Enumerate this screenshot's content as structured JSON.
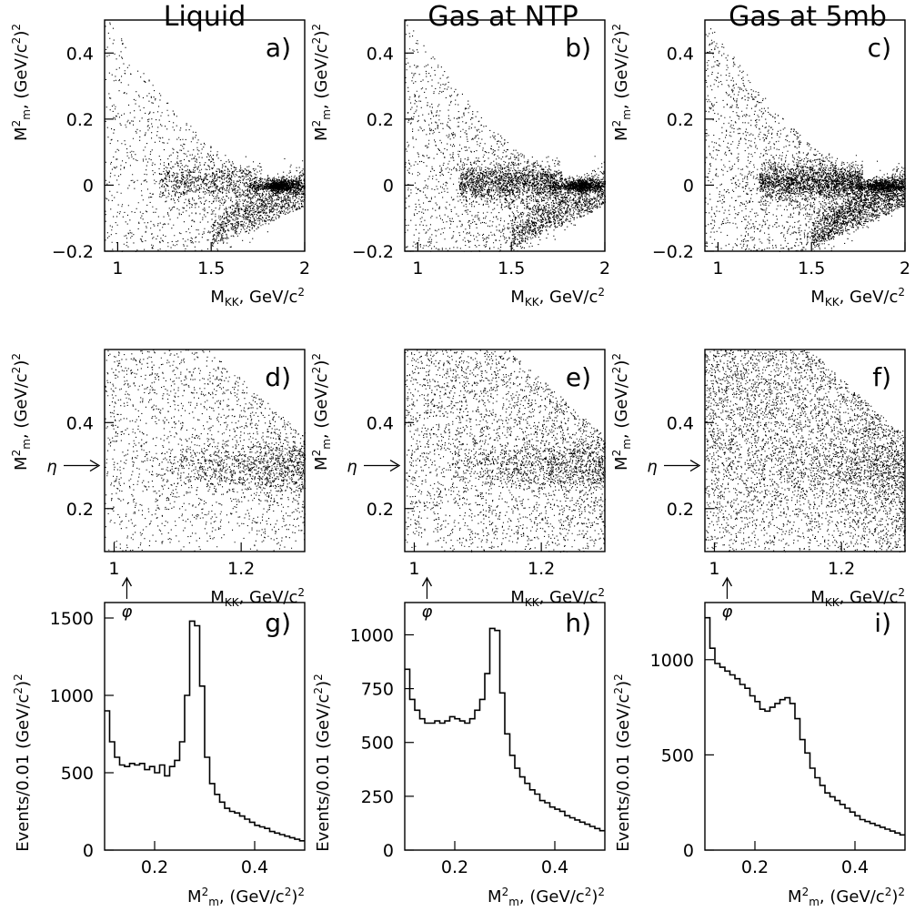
{
  "columns": [
    "Liquid",
    "Gas at NTP",
    "Gas at 5mb"
  ],
  "chart_data": [
    {
      "id": "a",
      "label": "a)",
      "type": "scatter",
      "col": 0,
      "row": 0,
      "xlabel": "M_KK, GeV/c^2",
      "ylabel": "M^2_m, (GeV/c^2)^2",
      "xlim": [
        0.93,
        2.0
      ],
      "ylim": [
        -0.2,
        0.5
      ],
      "xticks": [
        1,
        1.5,
        2
      ],
      "xtick_labels": [
        "1",
        "1.5",
        "2"
      ],
      "yticks": [
        -0.2,
        0,
        0.2,
        0.4
      ],
      "ytick_labels": [
        "-0.2",
        "0",
        "0.2",
        "0.4"
      ],
      "description_density": {
        "band_low": 0.55,
        "band_hi": 0.25,
        "phi_peak": 1.0,
        "bkg": 0.35
      }
    },
    {
      "id": "b",
      "label": "b)",
      "type": "scatter",
      "col": 1,
      "row": 0,
      "xlabel": "M_KK, GeV/c^2",
      "ylabel": "M^2_m, (GeV/c^2)^2",
      "xlim": [
        0.93,
        2.0
      ],
      "ylim": [
        -0.2,
        0.5
      ],
      "xticks": [
        1,
        1.5,
        2
      ],
      "xtick_labels": [
        "1",
        "1.5",
        "2"
      ],
      "yticks": [
        -0.2,
        0,
        0.2,
        0.4
      ],
      "ytick_labels": [
        "-0.2",
        "0",
        "0.2",
        "0.4"
      ],
      "description_density": {
        "band_low": 0.6,
        "band_hi": 0.55,
        "phi_peak": 0.8,
        "bkg": 0.45
      }
    },
    {
      "id": "c",
      "label": "c)",
      "type": "scatter",
      "col": 2,
      "row": 0,
      "xlabel": "M_KK, GeV/c^2",
      "ylabel": "M^2_m, (GeV/c^2)^2",
      "xlim": [
        0.93,
        2.0
      ],
      "ylim": [
        -0.2,
        0.5
      ],
      "xticks": [
        1,
        1.5,
        2
      ],
      "xtick_labels": [
        "1",
        "1.5",
        "2"
      ],
      "yticks": [
        -0.2,
        0,
        0.2,
        0.4
      ],
      "ytick_labels": [
        "-0.2",
        "0",
        "0.2",
        "0.4"
      ],
      "description_density": {
        "band_low": 0.9,
        "band_hi": 0.7,
        "phi_peak": 0.5,
        "bkg": 0.55
      }
    },
    {
      "id": "d",
      "label": "d)",
      "type": "scatter",
      "col": 0,
      "row": 1,
      "xlabel": "M_KK, GeV/c^2",
      "ylabel": "M^2_m, (GeV/c^2)^2",
      "xlim": [
        0.985,
        1.3
      ],
      "ylim": [
        0.1,
        0.57
      ],
      "xticks": [
        1,
        1.2
      ],
      "xtick_labels": [
        "1",
        "1.2"
      ],
      "yticks": [
        0.2,
        0.4
      ],
      "ytick_labels": [
        "0.2",
        "0.4"
      ],
      "eta_mark": "η",
      "phi_mark": "φ",
      "eta_value": 0.3,
      "phi_value": 1.02,
      "description_density": {
        "bkg": 0.35,
        "eta_band": 0.5
      }
    },
    {
      "id": "e",
      "label": "e)",
      "type": "scatter",
      "col": 1,
      "row": 1,
      "xlabel": "M_KK, GeV/c^2",
      "ylabel": "M^2_m, (GeV/c^2)^2",
      "xlim": [
        0.985,
        1.3
      ],
      "ylim": [
        0.1,
        0.57
      ],
      "xticks": [
        1,
        1.2
      ],
      "xtick_labels": [
        "1",
        "1.2"
      ],
      "yticks": [
        0.2,
        0.4
      ],
      "ytick_labels": [
        "0.2",
        "0.4"
      ],
      "eta_mark": "η",
      "phi_mark": "φ",
      "eta_value": 0.3,
      "phi_value": 1.02,
      "description_density": {
        "bkg": 0.55,
        "eta_band": 0.45
      }
    },
    {
      "id": "f",
      "label": "f)",
      "type": "scatter",
      "col": 2,
      "row": 1,
      "xlabel": "M_KK, GeV/c^2",
      "ylabel": "M^2_m, (GeV/c^2)^2",
      "xlim": [
        0.985,
        1.3
      ],
      "ylim": [
        0.1,
        0.57
      ],
      "xticks": [
        1,
        1.2
      ],
      "xtick_labels": [
        "1",
        "1.2"
      ],
      "yticks": [
        0.2,
        0.4
      ],
      "ytick_labels": [
        "0.2",
        "0.4"
      ],
      "eta_mark": "η",
      "phi_mark": "φ",
      "eta_value": 0.3,
      "phi_value": 1.02,
      "description_density": {
        "bkg": 0.85,
        "eta_band": 0.25
      }
    },
    {
      "id": "g",
      "label": "g)",
      "type": "histogram",
      "col": 0,
      "row": 2,
      "xlabel": "M^2_m, (GeV/c^2)^2",
      "ylabel": "Events/0.01 (GeV/c^2)^2",
      "xlim": [
        0.1,
        0.5
      ],
      "ylim": [
        0,
        1600
      ],
      "xticks": [
        0.2,
        0.4
      ],
      "xtick_labels": [
        "0.2",
        "0.4"
      ],
      "yticks": [
        0,
        500,
        1000,
        1500
      ],
      "ytick_labels": [
        "0",
        "500",
        "1000",
        "1500"
      ],
      "bin_start": 0.1,
      "bin_width": 0.01,
      "values": [
        900,
        700,
        600,
        550,
        540,
        560,
        550,
        560,
        520,
        540,
        500,
        550,
        480,
        540,
        580,
        700,
        1000,
        1480,
        1450,
        1060,
        600,
        430,
        360,
        310,
        270,
        250,
        240,
        220,
        200,
        180,
        160,
        150,
        140,
        120,
        110,
        100,
        90,
        80,
        70,
        60
      ]
    },
    {
      "id": "h",
      "label": "h)",
      "type": "histogram",
      "col": 1,
      "row": 2,
      "xlabel": "M^2_m, (GeV/c^2)^2",
      "ylabel": "Events/0.01 (GeV/c^2)^2",
      "xlim": [
        0.1,
        0.5
      ],
      "ylim": [
        0,
        1150
      ],
      "xticks": [
        0.2,
        0.4
      ],
      "xtick_labels": [
        "0.2",
        "0.4"
      ],
      "yticks": [
        0,
        250,
        500,
        750,
        1000
      ],
      "ytick_labels": [
        "0",
        "250",
        "500",
        "750",
        "1000"
      ],
      "bin_start": 0.1,
      "bin_width": 0.01,
      "values": [
        840,
        700,
        650,
        610,
        590,
        590,
        600,
        590,
        600,
        620,
        610,
        600,
        590,
        610,
        650,
        700,
        820,
        1030,
        1020,
        730,
        540,
        440,
        380,
        340,
        310,
        280,
        260,
        230,
        220,
        200,
        190,
        180,
        160,
        150,
        140,
        130,
        120,
        110,
        100,
        90
      ]
    },
    {
      "id": "i",
      "label": "i)",
      "type": "histogram",
      "col": 2,
      "row": 2,
      "xlabel": "M^2_m, (GeV/c^2)^2",
      "ylabel": "Events/0.01 (GeV/c^2)^2",
      "xlim": [
        0.1,
        0.5
      ],
      "ylim": [
        0,
        1300
      ],
      "xticks": [
        0.2,
        0.4
      ],
      "xtick_labels": [
        "0.2",
        "0.4"
      ],
      "yticks": [
        0,
        500,
        1000
      ],
      "ytick_labels": [
        "0",
        "500",
        "1000"
      ],
      "bin_start": 0.1,
      "bin_width": 0.01,
      "values": [
        1220,
        1060,
        980,
        960,
        940,
        920,
        900,
        870,
        850,
        810,
        780,
        740,
        730,
        750,
        770,
        790,
        800,
        770,
        690,
        580,
        510,
        430,
        380,
        340,
        300,
        280,
        260,
        240,
        220,
        200,
        180,
        160,
        150,
        140,
        130,
        120,
        110,
        100,
        90,
        80
      ]
    }
  ]
}
